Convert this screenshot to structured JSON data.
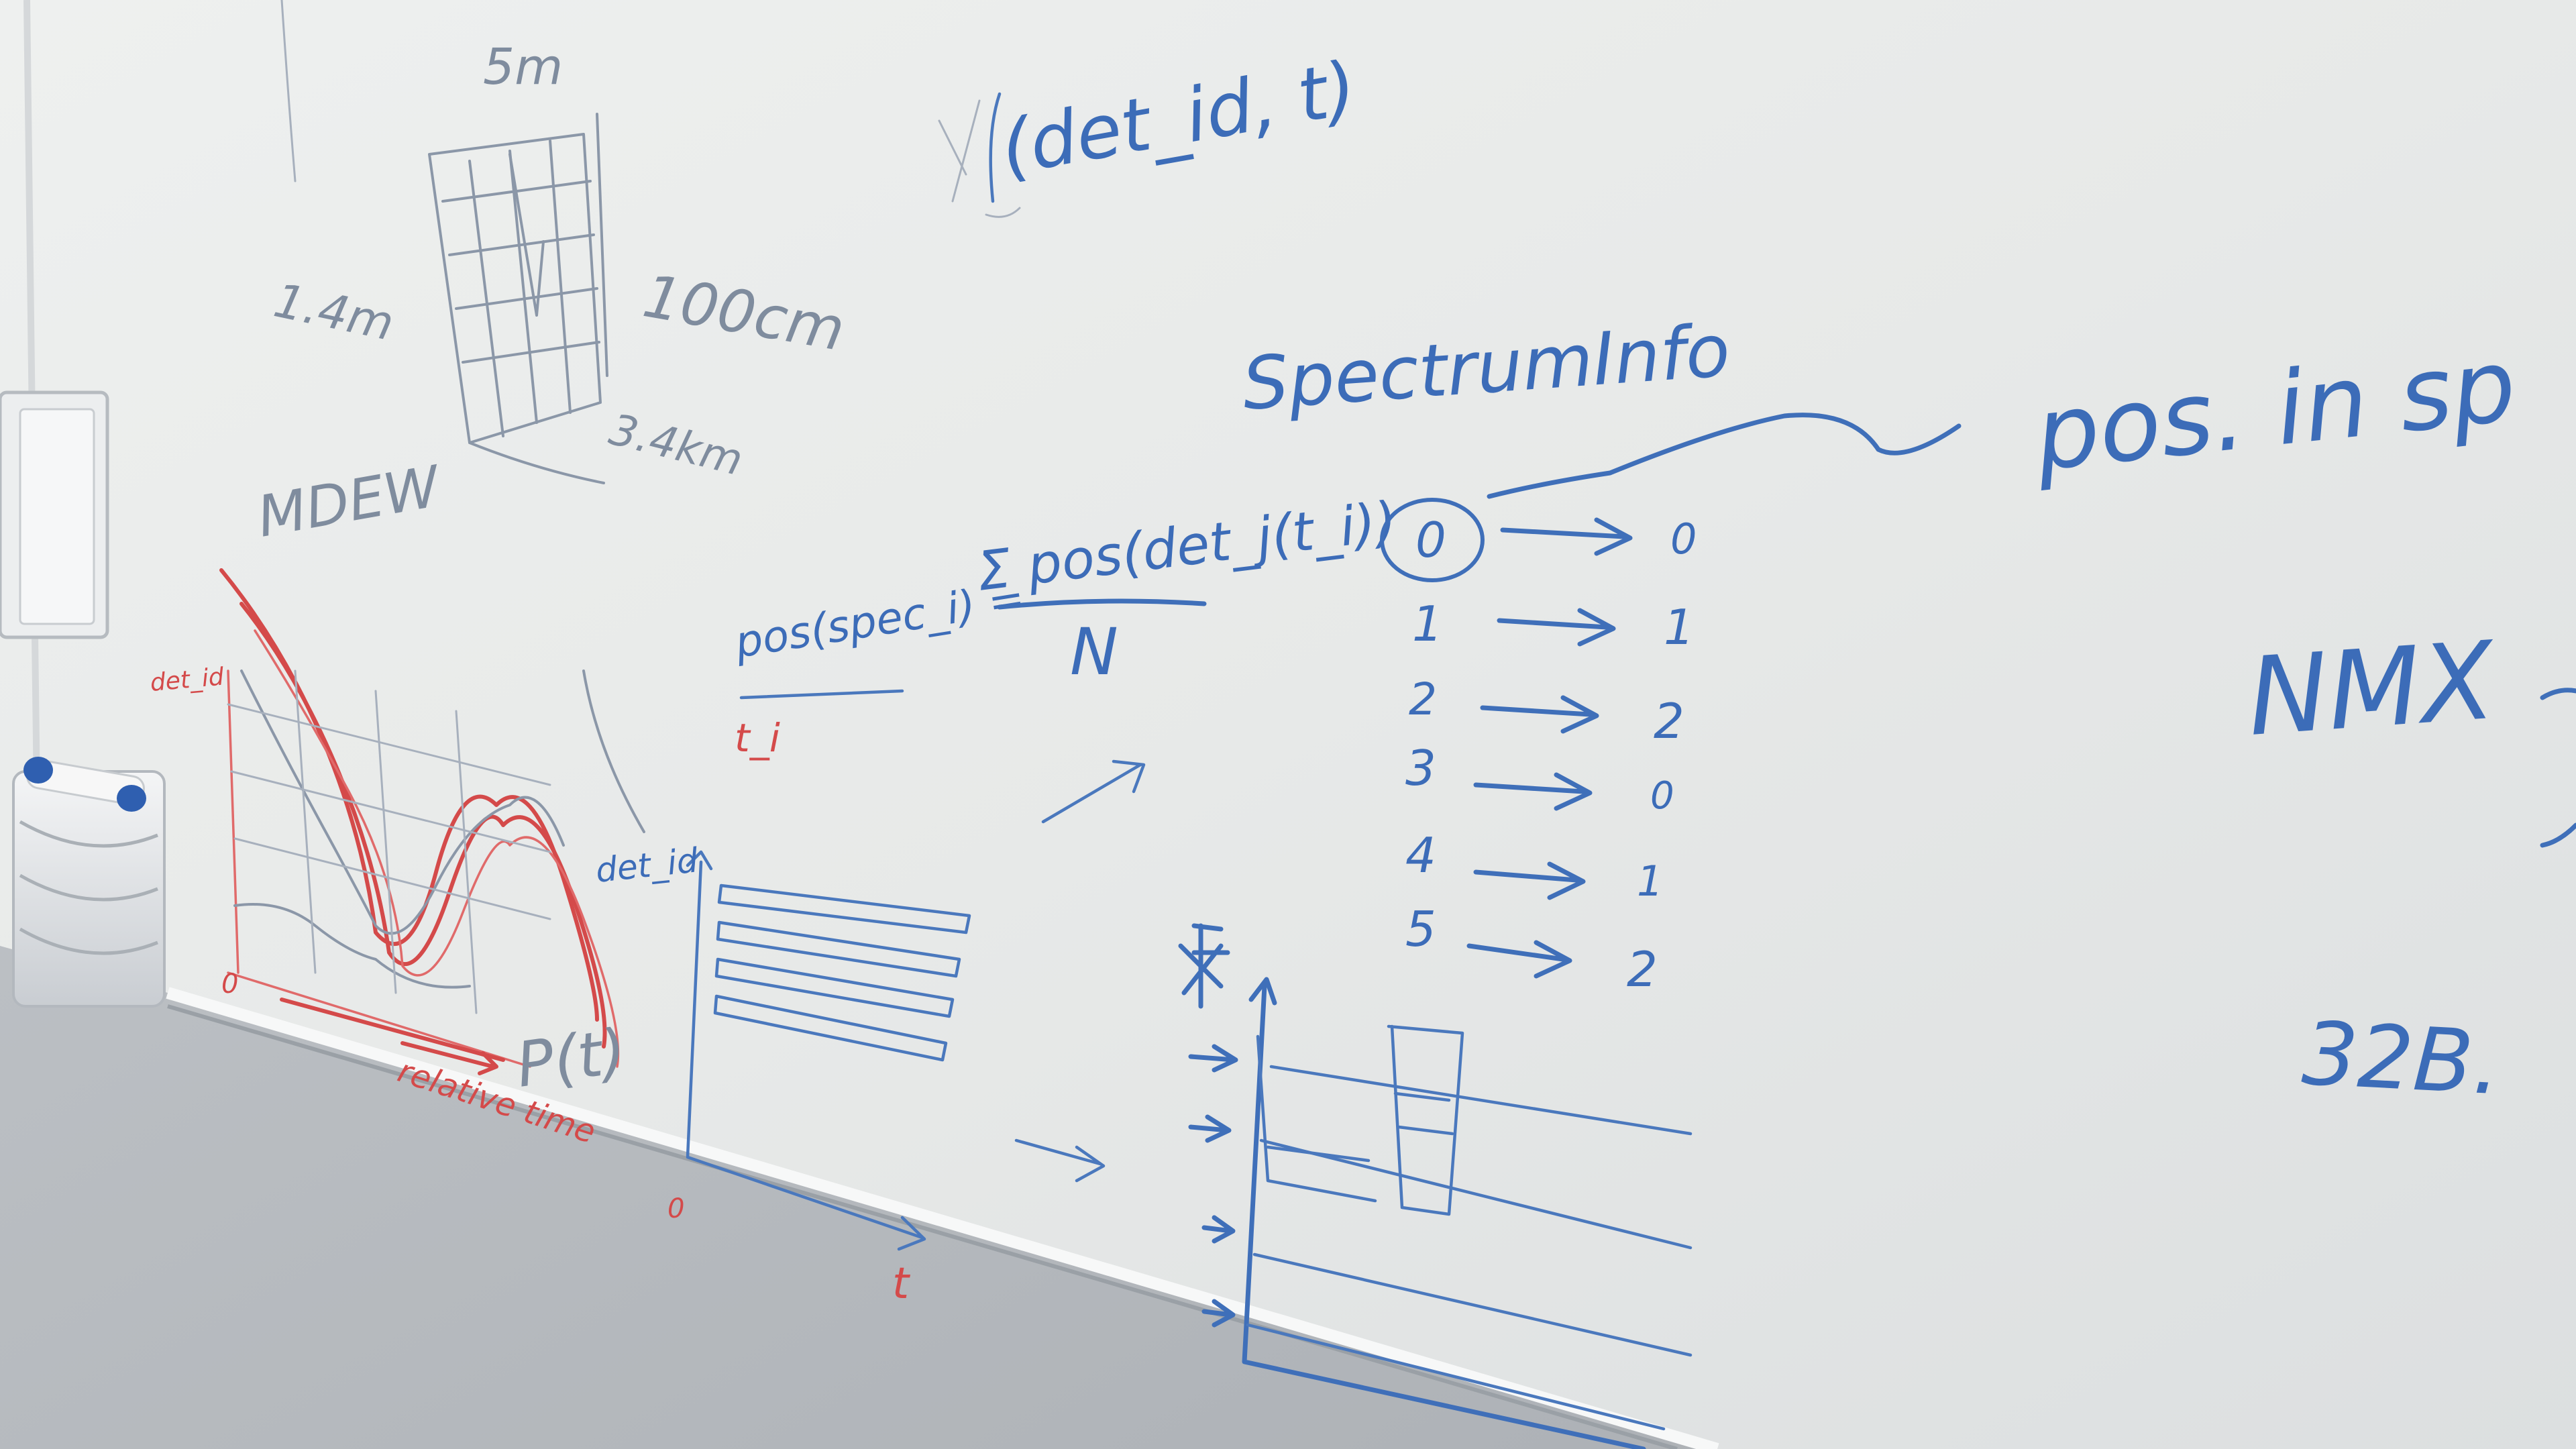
{
  "whiteboard": {
    "top_right_tuple": "(det_id, t)",
    "sketch_height_label": "5m",
    "sketch_width_label": "1.4m",
    "sketch_pixels_label": "100cm",
    "sketch_depth_label": "3.4km",
    "red_instrument_label": "MDEW",
    "formula_lhs": "pos(spec_i) =",
    "formula_lhs_sub": "t_i",
    "formula_numerator": "Σ pos(det_j(t_i))",
    "formula_denominator": "N",
    "spectrum_title": "SpectrumInfo",
    "callout_text": "pos. in sp",
    "nmx_label": "NMX",
    "size_label": "32B.",
    "chart_ylabel": "det_id",
    "chart_xlabel": "t",
    "chart_origin": "0",
    "red_plot_ylabel": "det_id",
    "red_plot_xlabel": "relative time",
    "red_plot_function": "P(t)",
    "red_origin": "0",
    "mapping_rows": [
      {
        "index": "0",
        "target": "0"
      },
      {
        "index": "1",
        "target": "1"
      },
      {
        "index": "2",
        "target": "2"
      },
      {
        "index": "3",
        "target": "0"
      },
      {
        "index": "4",
        "target": "1"
      },
      {
        "index": "5",
        "target": "2"
      }
    ]
  }
}
